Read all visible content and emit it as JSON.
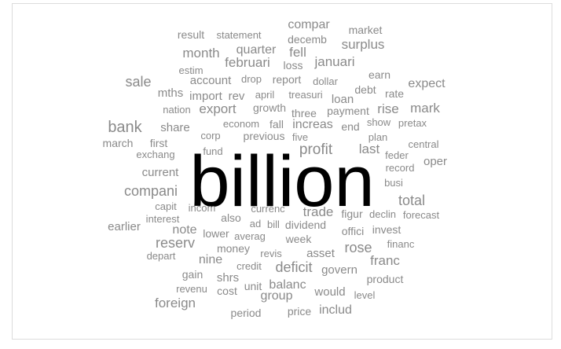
{
  "cloud": {
    "words": [
      {
        "text": "billion"
      },
      {
        "text": "result"
      },
      {
        "text": "statement"
      },
      {
        "text": "compar"
      },
      {
        "text": "market"
      },
      {
        "text": "decemb"
      },
      {
        "text": "surplus"
      },
      {
        "text": "month"
      },
      {
        "text": "quarter"
      },
      {
        "text": "fell"
      },
      {
        "text": "estim"
      },
      {
        "text": "februari"
      },
      {
        "text": "januari"
      },
      {
        "text": "loss"
      },
      {
        "text": "earn"
      },
      {
        "text": "sale"
      },
      {
        "text": "account"
      },
      {
        "text": "drop"
      },
      {
        "text": "report"
      },
      {
        "text": "dollar"
      },
      {
        "text": "expect"
      },
      {
        "text": "mths"
      },
      {
        "text": "import"
      },
      {
        "text": "rev"
      },
      {
        "text": "april"
      },
      {
        "text": "treasuri"
      },
      {
        "text": "debt"
      },
      {
        "text": "rate"
      },
      {
        "text": "loan"
      },
      {
        "text": "nation"
      },
      {
        "text": "export"
      },
      {
        "text": "growth"
      },
      {
        "text": "three"
      },
      {
        "text": "payment"
      },
      {
        "text": "rise"
      },
      {
        "text": "mark"
      },
      {
        "text": "econom"
      },
      {
        "text": "fall"
      },
      {
        "text": "increas"
      },
      {
        "text": "end"
      },
      {
        "text": "show"
      },
      {
        "text": "pretax"
      },
      {
        "text": "bank"
      },
      {
        "text": "share"
      },
      {
        "text": "corp"
      },
      {
        "text": "previous"
      },
      {
        "text": "five"
      },
      {
        "text": "plan"
      },
      {
        "text": "march"
      },
      {
        "text": "first"
      },
      {
        "text": "profit"
      },
      {
        "text": "last"
      },
      {
        "text": "central"
      },
      {
        "text": "exchang"
      },
      {
        "text": "fund"
      },
      {
        "text": "feder"
      },
      {
        "text": "oper"
      },
      {
        "text": "record"
      },
      {
        "text": "current"
      },
      {
        "text": "busi"
      },
      {
        "text": "compani"
      },
      {
        "text": "total"
      },
      {
        "text": "capit"
      },
      {
        "text": "incom"
      },
      {
        "text": "currenc"
      },
      {
        "text": "trade"
      },
      {
        "text": "figur"
      },
      {
        "text": "declin"
      },
      {
        "text": "forecast"
      },
      {
        "text": "interest"
      },
      {
        "text": "also"
      },
      {
        "text": "ad"
      },
      {
        "text": "bill"
      },
      {
        "text": "dividend"
      },
      {
        "text": "earlier"
      },
      {
        "text": "note"
      },
      {
        "text": "lower"
      },
      {
        "text": "averag"
      },
      {
        "text": "offici"
      },
      {
        "text": "invest"
      },
      {
        "text": "week"
      },
      {
        "text": "reserv"
      },
      {
        "text": "money"
      },
      {
        "text": "rose"
      },
      {
        "text": "financ"
      },
      {
        "text": "depart"
      },
      {
        "text": "revis"
      },
      {
        "text": "asset"
      },
      {
        "text": "nine"
      },
      {
        "text": "franc"
      },
      {
        "text": "credit"
      },
      {
        "text": "deficit"
      },
      {
        "text": "govern"
      },
      {
        "text": "gain"
      },
      {
        "text": "shrs"
      },
      {
        "text": "product"
      },
      {
        "text": "unit"
      },
      {
        "text": "balanc"
      },
      {
        "text": "revenu"
      },
      {
        "text": "cost"
      },
      {
        "text": "would"
      },
      {
        "text": "group"
      },
      {
        "text": "level"
      },
      {
        "text": "foreign"
      },
      {
        "text": "period"
      },
      {
        "text": "price"
      },
      {
        "text": "includ"
      }
    ]
  }
}
